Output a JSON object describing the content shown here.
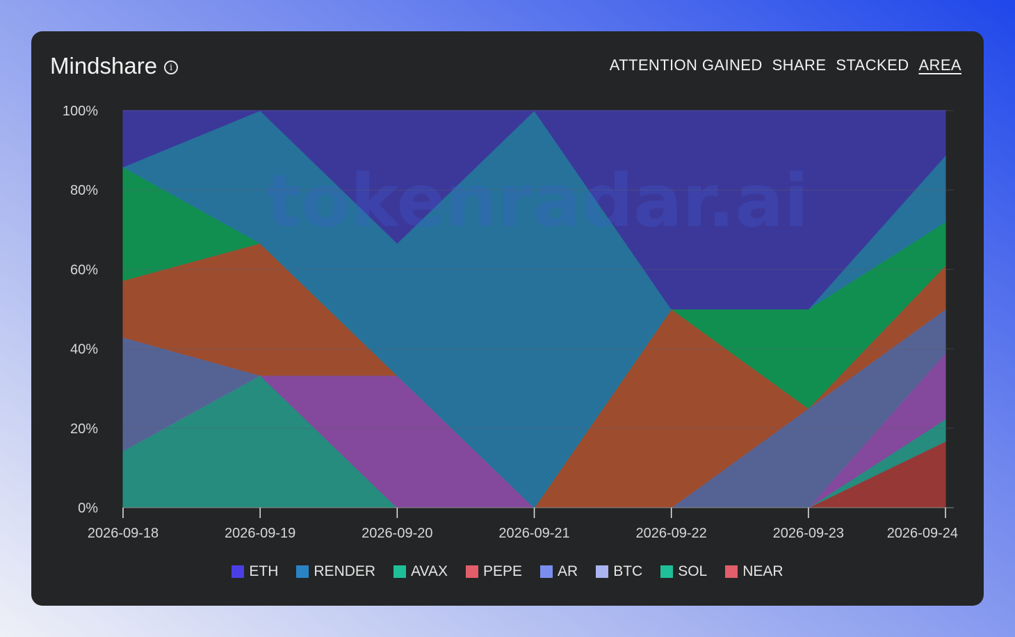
{
  "header": {
    "title": "Mindshare",
    "modes": [
      "ATTENTION GAINED",
      "SHARE",
      "STACKED",
      "AREA"
    ],
    "active_mode": "AREA"
  },
  "watermark": "tokenradar.ai",
  "chart_data": {
    "type": "area",
    "stacked": true,
    "x": [
      "2026-09-18",
      "2026-09-19",
      "2026-09-20",
      "2026-09-21",
      "2026-09-22",
      "2026-09-23",
      "2026-09-24"
    ],
    "y_ticks": [
      "0%",
      "20%",
      "40%",
      "60%",
      "80%",
      "100%"
    ],
    "ylim": [
      0,
      100
    ],
    "grid": true,
    "legend_position": "bottom",
    "series": [
      {
        "name": "NEAR",
        "color": "#e15e6a",
        "fill": "#963836",
        "values": [
          0,
          0,
          0,
          0,
          0,
          0,
          16.7
        ]
      },
      {
        "name": "SOL",
        "color": "#1fbf98",
        "fill": "#258c7e",
        "values": [
          14.3,
          33.3,
          0,
          0,
          0,
          0,
          5.6
        ]
      },
      {
        "name": "BTC",
        "color": "#a9b4f0",
        "fill": "#84489c",
        "values": [
          0,
          0,
          33.3,
          0,
          0,
          0,
          16.7
        ]
      },
      {
        "name": "AR",
        "color": "#7b8ef0",
        "fill": "#556394",
        "values": [
          28.6,
          0,
          0,
          0,
          0,
          25,
          11
        ]
      },
      {
        "name": "PEPE",
        "color": "#e15e6a",
        "fill": "#9d4c2e",
        "values": [
          14.3,
          33.3,
          0,
          0,
          50,
          0,
          11
        ]
      },
      {
        "name": "AVAX",
        "color": "#1fbf98",
        "fill": "#118f50",
        "values": [
          28.6,
          0,
          0,
          0,
          0,
          25,
          11
        ]
      },
      {
        "name": "RENDER",
        "color": "#2a84c4",
        "fill": "#26729a",
        "values": [
          0,
          33.4,
          33.3,
          100,
          0,
          0,
          16.7
        ]
      },
      {
        "name": "ETH",
        "color": "#4a3fe6",
        "fill": "#3c389a",
        "values": [
          14.2,
          0,
          33.4,
          0,
          50,
          50,
          11.3
        ]
      }
    ],
    "legend": [
      {
        "name": "ETH",
        "color": "#4a3fe6"
      },
      {
        "name": "RENDER",
        "color": "#2a84c4"
      },
      {
        "name": "AVAX",
        "color": "#1fbf98"
      },
      {
        "name": "PEPE",
        "color": "#e15e6a"
      },
      {
        "name": "AR",
        "color": "#7b8ef0"
      },
      {
        "name": "BTC",
        "color": "#a9b4f0"
      },
      {
        "name": "SOL",
        "color": "#1fbf98"
      },
      {
        "name": "NEAR",
        "color": "#e15e6a"
      }
    ]
  }
}
